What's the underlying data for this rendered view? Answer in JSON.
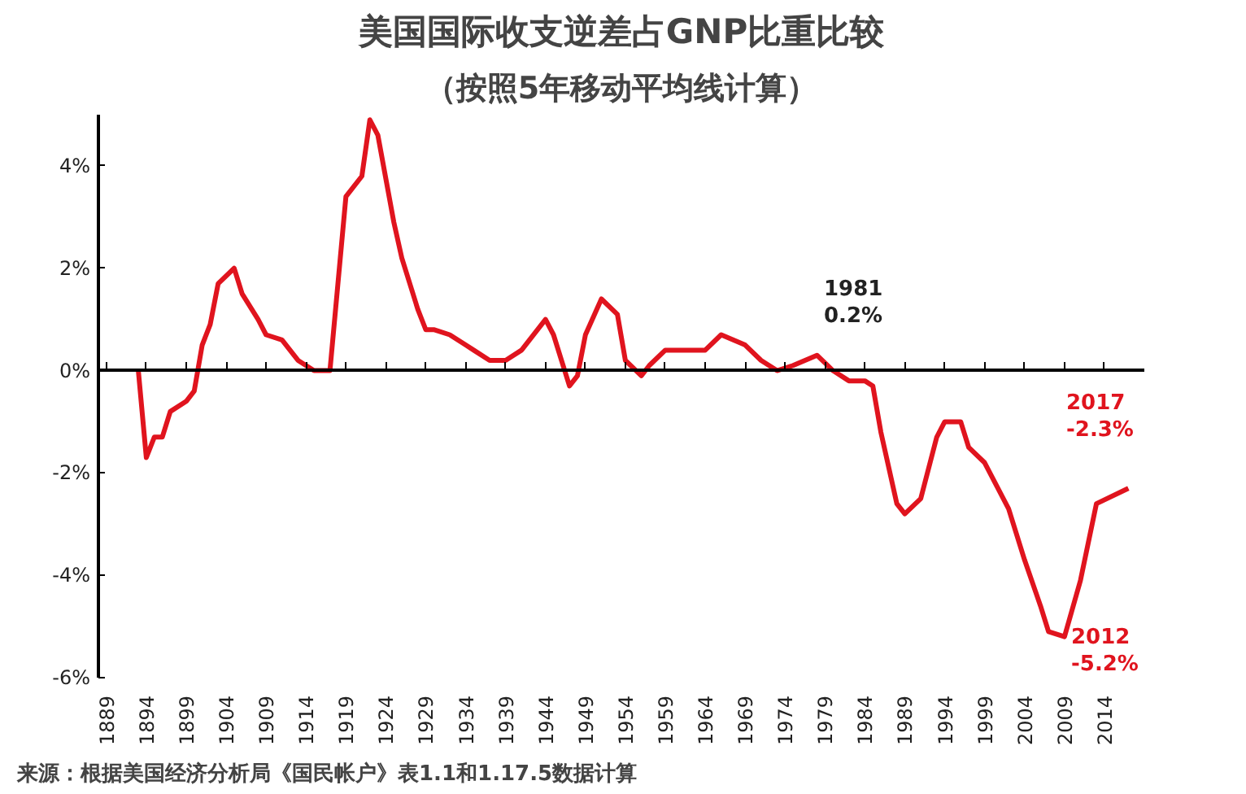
{
  "chart_data": {
    "type": "line",
    "title": "美国国际收支逆差占GNP比重比较",
    "subtitle": "（按照5年移动平均线计算）",
    "x": [
      1893,
      1894,
      1895,
      1896,
      1897,
      1899,
      1900,
      1901,
      1902,
      1903,
      1905,
      1906,
      1908,
      1909,
      1911,
      1913,
      1915,
      1917,
      1919,
      1921,
      1922,
      1923,
      1925,
      1926,
      1928,
      1929,
      1930,
      1932,
      1934,
      1935,
      1937,
      1939,
      1941,
      1944,
      1945,
      1947,
      1948,
      1949,
      1951,
      1953,
      1954,
      1956,
      1957,
      1959,
      1960,
      1962,
      1964,
      1966,
      1969,
      1971,
      1973,
      1975,
      1978,
      1980,
      1982,
      1984,
      1985,
      1986,
      1988,
      1989,
      1991,
      1993,
      1994,
      1996,
      1997,
      1999,
      2002,
      2004,
      2006,
      2007,
      2009,
      2011,
      2013,
      2017
    ],
    "series": [
      {
        "color": "#e0141e",
        "values": [
          0,
          -1.7,
          -1.3,
          -1.3,
          -0.8,
          -0.6,
          -0.4,
          0.5,
          0.9,
          1.7,
          2.0,
          1.5,
          1.0,
          0.7,
          0.6,
          0.2,
          0,
          0,
          3.4,
          3.8,
          4.9,
          4.6,
          2.9,
          2.2,
          1.2,
          0.8,
          0.8,
          0.7,
          0.5,
          0.4,
          0.2,
          0.2,
          0.4,
          1.0,
          0.7,
          -0.3,
          -0.1,
          0.7,
          1.4,
          1.1,
          0.2,
          -0.1,
          0.1,
          0.4,
          0.4,
          0.4,
          0.4,
          0.7,
          0.5,
          0.2,
          0,
          0.1,
          0.3,
          0,
          -0.2,
          -0.2,
          -0.3,
          -1.2,
          -2.6,
          -2.8,
          -2.5,
          -1.3,
          -1.0,
          -1.0,
          -1.5,
          -1.8,
          -2.7,
          -3.7,
          -4.6,
          -5.1,
          -5.2,
          -4.1,
          -2.6,
          -2.3
        ]
      }
    ],
    "xlim": [
      1888,
      2019
    ],
    "xticks": [
      1889,
      1894,
      1899,
      1904,
      1909,
      1914,
      1919,
      1924,
      1929,
      1934,
      1939,
      1944,
      1949,
      1954,
      1959,
      1964,
      1969,
      1974,
      1979,
      1984,
      1989,
      1994,
      1999,
      2004,
      2009,
      2014
    ],
    "ylim": [
      -6,
      5
    ],
    "yticks": [
      {
        "value": -6,
        "label": "-6%"
      },
      {
        "value": -4,
        "label": "-4%"
      },
      {
        "value": -2,
        "label": "-2%"
      },
      {
        "value": 0,
        "label": "0%"
      },
      {
        "value": 2,
        "label": "2%"
      },
      {
        "value": 4,
        "label": "4%"
      }
    ],
    "annotations": [
      "1981\n0.2%",
      "2012\n-5.2%",
      "2017\n-2.3%",
      "来源：根据美国经济分析局《国民帐户》表1.1和1.17.5数据计算"
    ]
  }
}
